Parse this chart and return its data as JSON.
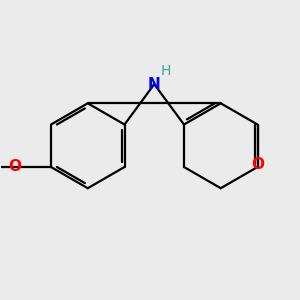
{
  "background_color": "#ebebeb",
  "bond_color": "#000000",
  "N_color": "#0000ff",
  "H_color": "#40a0a0",
  "O_color": "#ff0000",
  "line_width": 1.6,
  "figsize": [
    3.0,
    3.0
  ],
  "dpi": 100,
  "xlim": [
    -3.8,
    3.2
  ],
  "ylim": [
    -2.8,
    2.8
  ]
}
